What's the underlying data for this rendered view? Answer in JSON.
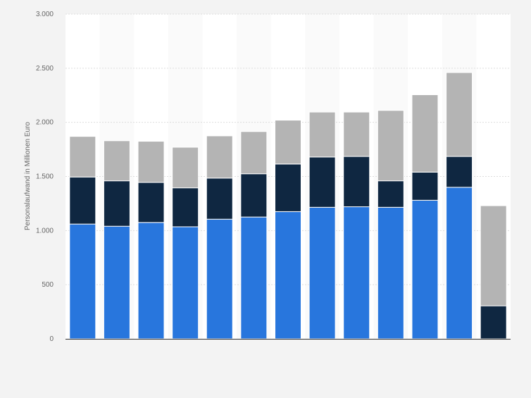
{
  "chart_data": {
    "type": "bar",
    "stacked": true,
    "title": "",
    "xlabel": "",
    "ylabel": "Personalaufwand in Millionen Euro",
    "ylim": [
      0,
      3000
    ],
    "yticks": [
      0,
      500,
      1000,
      1500,
      2000,
      2500,
      3000
    ],
    "ytick_labels": [
      "0",
      "500",
      "1.000",
      "1.500",
      "2.000",
      "2.500",
      "3.000"
    ],
    "grid": true,
    "legend": "none",
    "bar_count": 13,
    "series": [
      {
        "color": "#2876dd",
        "values": [
          1060,
          1040,
          1075,
          1035,
          1105,
          1125,
          1175,
          1215,
          1220,
          1215,
          1280,
          1400,
          0
        ]
      },
      {
        "color": "#0f2741",
        "values": [
          435,
          420,
          370,
          360,
          380,
          400,
          440,
          465,
          465,
          245,
          260,
          285,
          305
        ]
      },
      {
        "color": "#b4b4b4",
        "values": [
          375,
          370,
          380,
          375,
          390,
          390,
          405,
          415,
          410,
          650,
          715,
          775,
          925
        ]
      }
    ],
    "colors": {
      "background": "#f3f3f3",
      "plot_background": "#ffffff",
      "band": "#fafafa",
      "gridline": "#dddddd",
      "axis": "#333333"
    }
  }
}
